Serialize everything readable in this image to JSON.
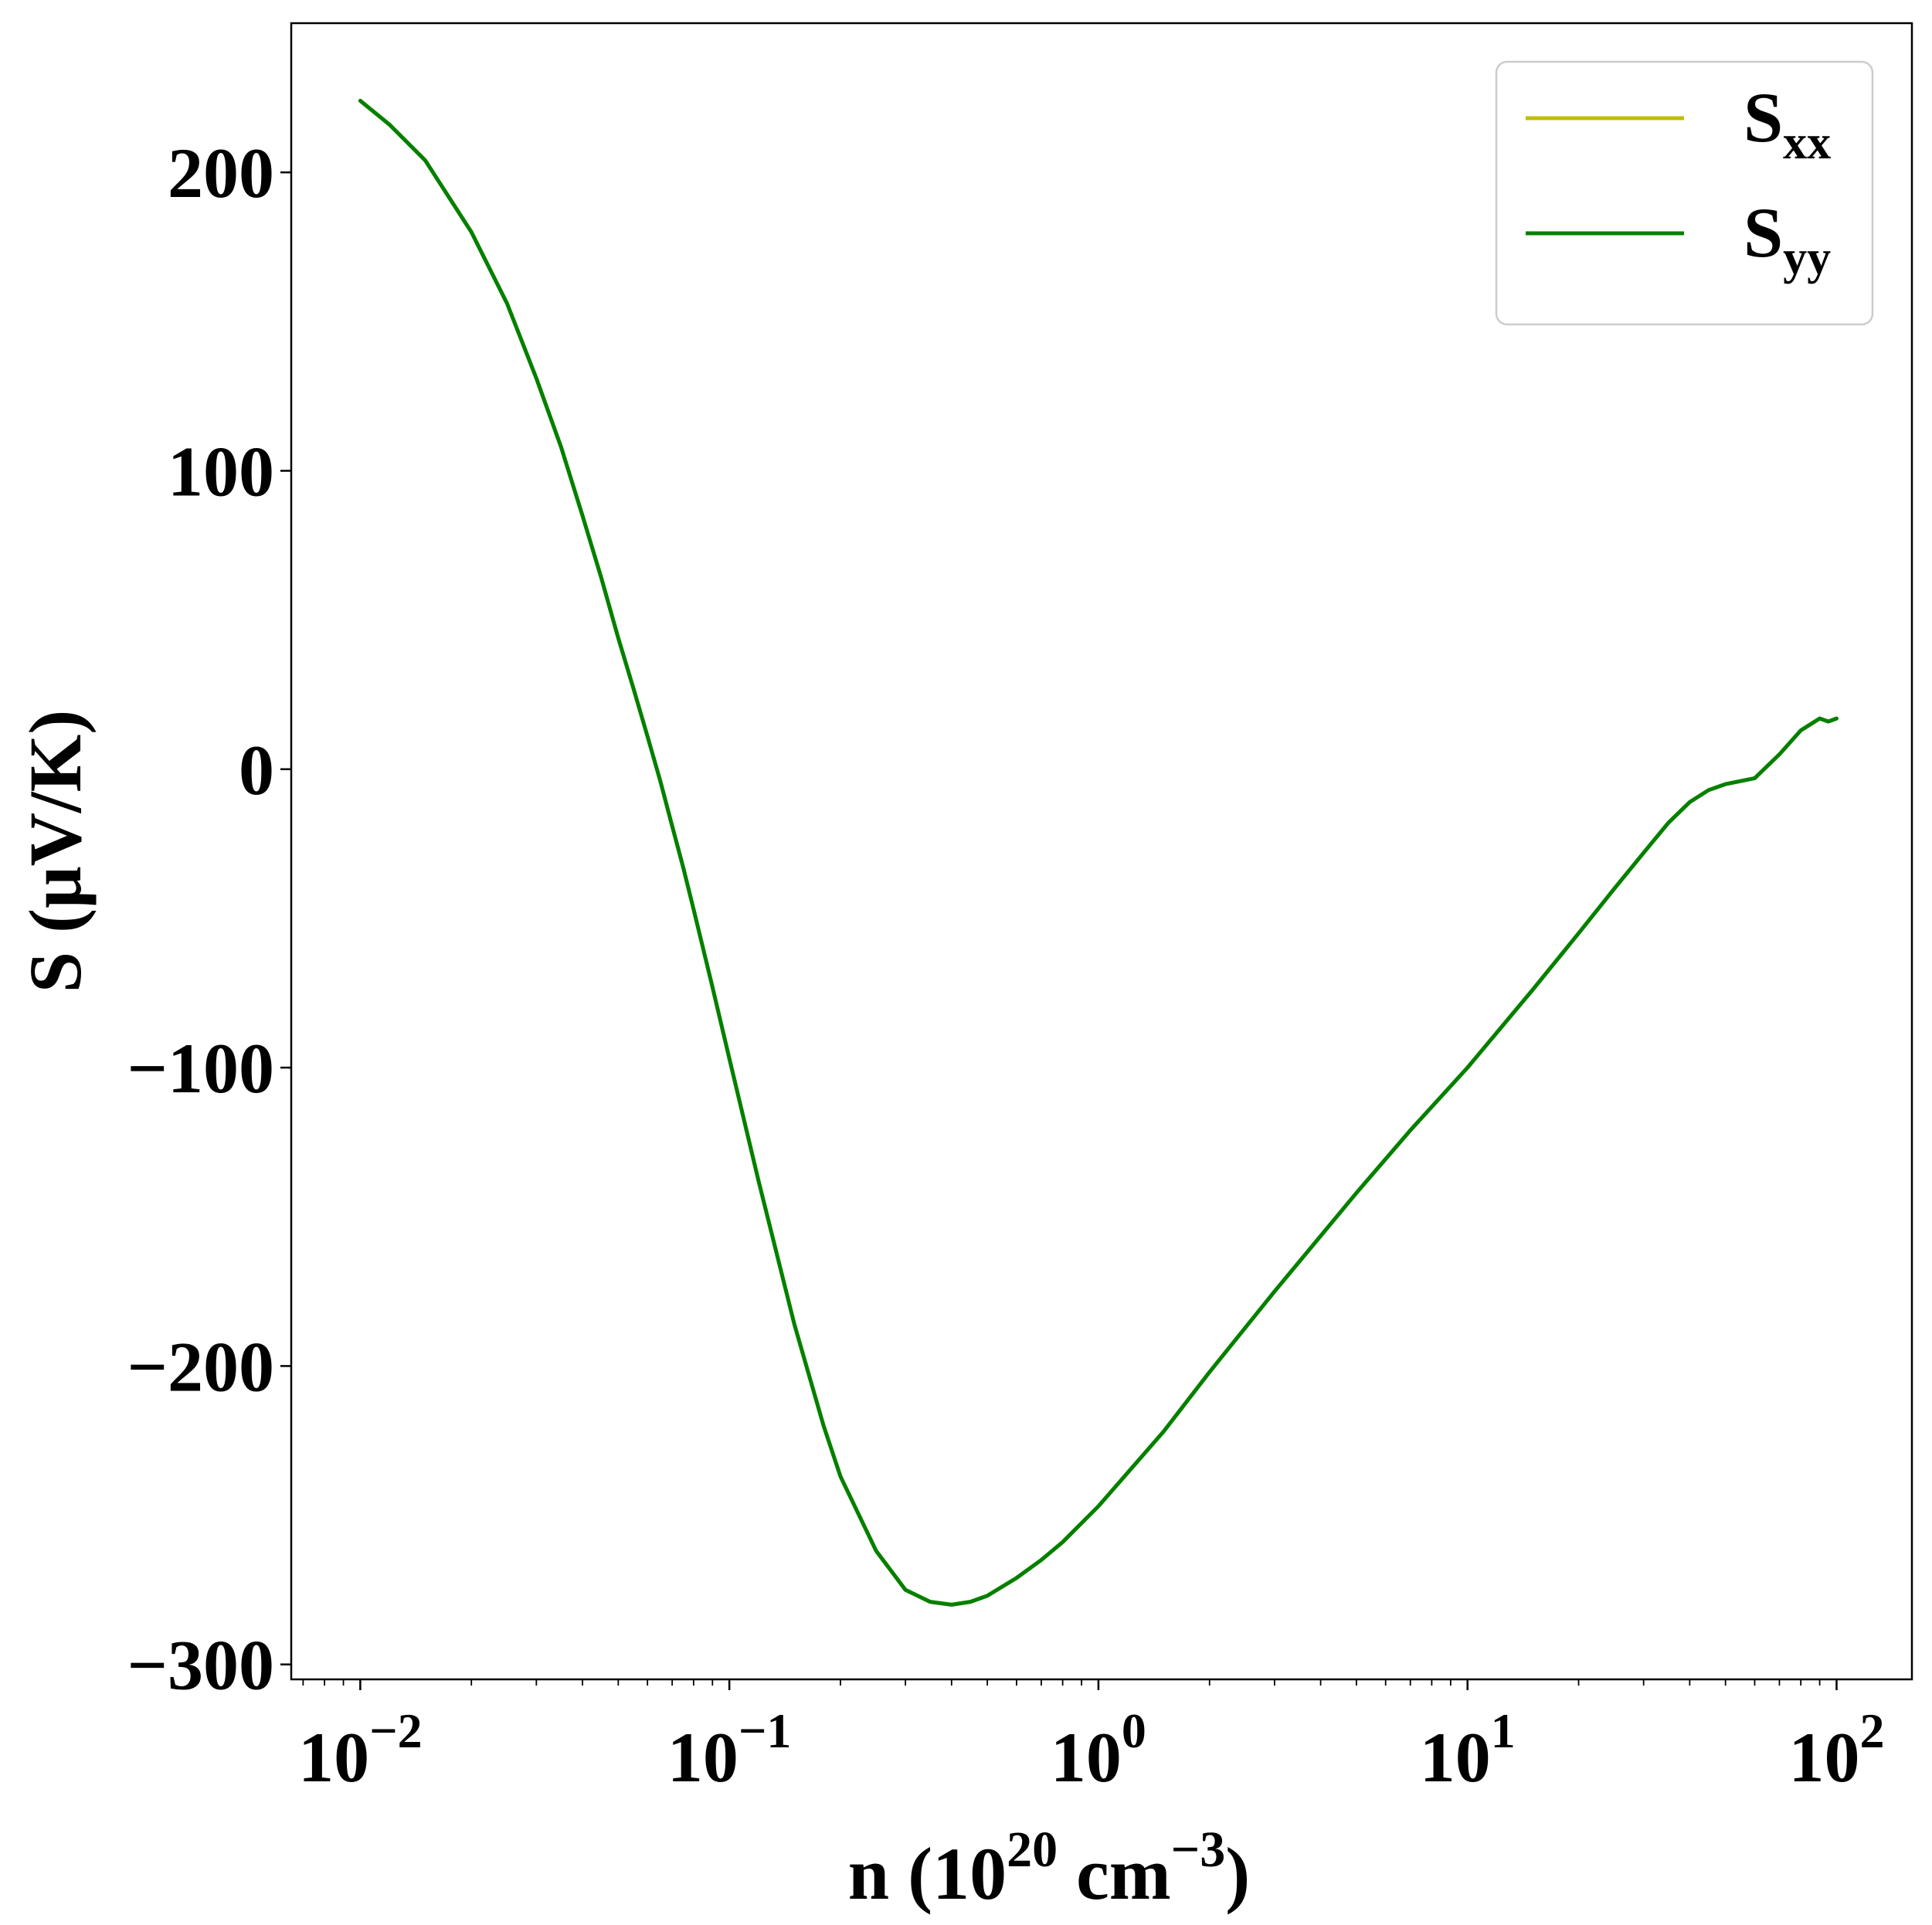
{
  "chart_data": {
    "type": "line",
    "xlabel": {
      "prefix": "n (10",
      "sup1": "20",
      "middle": " cm",
      "sup2": "−3",
      "suffix": ")"
    },
    "ylabel": "S (μV/K)",
    "xscale": "log",
    "xlim": [
      0.0065,
      160
    ],
    "ylim": [
      -305,
      250
    ],
    "x_ticks": [
      {
        "value": 0.01,
        "base": "10",
        "exp": "−2"
      },
      {
        "value": 0.1,
        "base": "10",
        "exp": "−1"
      },
      {
        "value": 1,
        "base": "10",
        "exp": "0"
      },
      {
        "value": 10,
        "base": "10",
        "exp": "1"
      },
      {
        "value": 100,
        "base": "10",
        "exp": "2"
      }
    ],
    "y_ticks": [
      {
        "value": 200,
        "label": "200"
      },
      {
        "value": 100,
        "label": "100"
      },
      {
        "value": 0,
        "label": "0"
      },
      {
        "value": -100,
        "label": "−100"
      },
      {
        "value": -200,
        "label": "−200"
      },
      {
        "value": -300,
        "label": "−300"
      }
    ],
    "grid": false,
    "legend": {
      "placement": "top-right",
      "entries": [
        {
          "base": "S",
          "sub": "xx",
          "color": "#bfbf00"
        },
        {
          "base": "S",
          "sub": "yy",
          "color": "#008000"
        }
      ]
    },
    "series": [
      {
        "name": "Sxx",
        "color": "#bfbf00",
        "x": [
          0.01,
          0.012,
          0.015,
          0.02,
          0.025,
          0.03,
          0.035,
          0.04,
          0.045,
          0.05,
          0.055,
          0.06,
          0.065,
          0.07,
          0.075,
          0.08,
          0.09,
          0.1,
          0.12,
          0.15,
          0.18,
          0.2,
          0.25,
          0.3,
          0.35,
          0.4,
          0.45,
          0.5,
          0.6,
          0.7,
          0.8,
          1.0,
          1.5,
          2,
          3,
          5,
          7,
          10,
          15,
          20,
          25,
          30,
          35,
          40,
          45,
          50,
          60,
          70,
          80,
          90,
          95,
          100
        ],
        "y": [
          224,
          216,
          204,
          180,
          156,
          131,
          108,
          85,
          64,
          44,
          27,
          11,
          -4,
          -19,
          -33,
          -47,
          -73,
          -97,
          -138,
          -186,
          -220,
          -237,
          -262,
          -275,
          -279,
          -280,
          -279,
          -277,
          -271,
          -265,
          -259,
          -247,
          -222,
          -202,
          -175,
          -142,
          -121,
          -100,
          -74,
          -55,
          -40,
          -28,
          -18,
          -11,
          -7,
          -5,
          -3,
          5,
          13,
          17,
          16,
          17
        ]
      },
      {
        "name": "Syy",
        "color": "#008000",
        "x": [
          0.01,
          0.012,
          0.015,
          0.02,
          0.025,
          0.03,
          0.035,
          0.04,
          0.045,
          0.05,
          0.055,
          0.06,
          0.065,
          0.07,
          0.075,
          0.08,
          0.09,
          0.1,
          0.12,
          0.15,
          0.18,
          0.2,
          0.25,
          0.3,
          0.35,
          0.4,
          0.45,
          0.5,
          0.6,
          0.7,
          0.8,
          1.0,
          1.5,
          2,
          3,
          5,
          7,
          10,
          15,
          20,
          25,
          30,
          35,
          40,
          45,
          50,
          60,
          70,
          80,
          90,
          95,
          100
        ],
        "y": [
          224,
          216,
          204,
          180,
          156,
          131,
          108,
          85,
          64,
          44,
          27,
          11,
          -4,
          -19,
          -33,
          -47,
          -73,
          -97,
          -138,
          -186,
          -220,
          -237,
          -262,
          -275,
          -279,
          -280,
          -279,
          -277,
          -271,
          -265,
          -259,
          -247,
          -222,
          -202,
          -175,
          -142,
          -121,
          -100,
          -74,
          -55,
          -40,
          -28,
          -18,
          -11,
          -7,
          -5,
          -3,
          5,
          13,
          17,
          16,
          17
        ]
      }
    ]
  }
}
